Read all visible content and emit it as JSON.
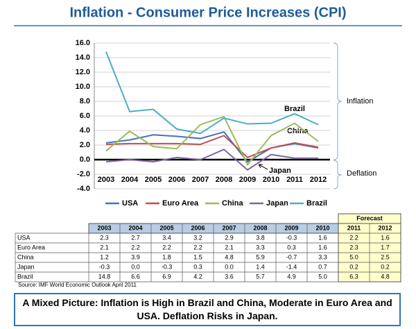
{
  "title": "Inflation - Consumer Price Increases (CPI)",
  "chart_data": {
    "type": "line",
    "categories": [
      "2003",
      "2004",
      "2005",
      "2006",
      "2007",
      "2008",
      "2009",
      "2010",
      "2011",
      "2012"
    ],
    "series": [
      {
        "name": "USA",
        "color": "#4472c4",
        "values": [
          2.3,
          2.7,
          3.4,
          3.2,
          2.9,
          3.8,
          -0.3,
          1.6,
          2.2,
          1.6
        ],
        "value_labels": [
          "2.3",
          "2.7",
          "3.4",
          "3.2",
          "2.9",
          "3.8",
          "-0.3",
          "1.6",
          "2.2",
          "1.6"
        ]
      },
      {
        "name": "Euro Area",
        "color": "#c0504d",
        "values": [
          2.1,
          2.2,
          2.2,
          2.2,
          2.1,
          3.3,
          0.3,
          1.6,
          2.3,
          1.7
        ],
        "value_labels": [
          "2.1",
          "2.2",
          "2.2",
          "2.2",
          "2.1",
          "3.3",
          "0.3",
          "1.6",
          "2.3",
          "1.7"
        ]
      },
      {
        "name": "China",
        "color": "#9bbb59",
        "values": [
          1.2,
          3.9,
          1.8,
          1.5,
          4.8,
          5.9,
          -0.7,
          3.3,
          5.0,
          2.5
        ],
        "value_labels": [
          "1.2",
          "3.9",
          "1.8",
          "1.5",
          "4.8",
          "5.9",
          "-0.7",
          "3.3",
          "5.0",
          "2.5"
        ]
      },
      {
        "name": "Japan",
        "color": "#8064a2",
        "values": [
          -0.3,
          0.0,
          -0.3,
          0.3,
          0.0,
          1.4,
          -1.4,
          0.7,
          0.2,
          0.2
        ],
        "value_labels": [
          "-0.3",
          "0.0",
          "-0.3",
          "0.3",
          "0.0",
          "1.4",
          "-1.4",
          "0.7",
          "0.2",
          "0.2"
        ]
      },
      {
        "name": "Brazil",
        "color": "#4bacc6",
        "values": [
          14.8,
          6.6,
          6.9,
          4.2,
          3.6,
          5.7,
          4.9,
          5.0,
          6.3,
          4.8
        ],
        "value_labels": [
          "14.8",
          "6.6",
          "6.9",
          "4.2",
          "3.6",
          "5.7",
          "4.9",
          "5.0",
          "6.3",
          "4.8"
        ]
      }
    ],
    "ylim": [
      -4,
      16
    ],
    "yticks": [
      {
        "value": -4,
        "label": "-4.0"
      },
      {
        "value": -2,
        "label": "-2.0"
      },
      {
        "value": 0,
        "label": "0.0"
      },
      {
        "value": 2,
        "label": "2.0"
      },
      {
        "value": 4,
        "label": "4.0"
      },
      {
        "value": 6,
        "label": "6.0"
      },
      {
        "value": 8,
        "label": "8.0"
      },
      {
        "value": 10,
        "label": "10.0"
      },
      {
        "value": 12,
        "label": "12.0"
      },
      {
        "value": 14,
        "label": "14.0"
      },
      {
        "value": 16,
        "label": "16.0"
      }
    ],
    "grid": true,
    "annotations": {
      "inflation": "Inflation",
      "deflation": "Deflation",
      "brazil": "Brazil",
      "china": "China",
      "japan": "Japan"
    }
  },
  "table": {
    "forecast_label": "Forecast",
    "forecast_from": 8
  },
  "source": "Source: IMF World Economic Outlook April 2011",
  "conclusion": "A Mixed Picture: Inflation is High in Brazil and China, Moderate in Euro Area and USA.  Deflation Risks in Japan."
}
